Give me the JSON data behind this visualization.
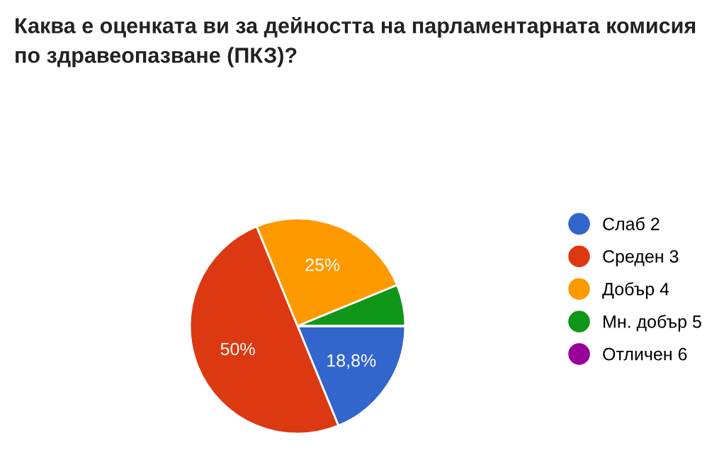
{
  "chart_data": {
    "type": "pie",
    "title": "Каква е оценката ви за дейността на парламентарната комисия по здравеопазване (ПКЗ)?",
    "categories": [
      "Слаб 2",
      "Среден 3",
      "Добър 4",
      "Мн. добър 5",
      "Отличен 6"
    ],
    "values": [
      18.8,
      50,
      25,
      6.2,
      0
    ],
    "colors": [
      "#3366cc",
      "#dc3912",
      "#ff9900",
      "#109618",
      "#990099"
    ],
    "value_labels": [
      "18,8%",
      "50%",
      "25%",
      null,
      null
    ],
    "legend": "right"
  }
}
